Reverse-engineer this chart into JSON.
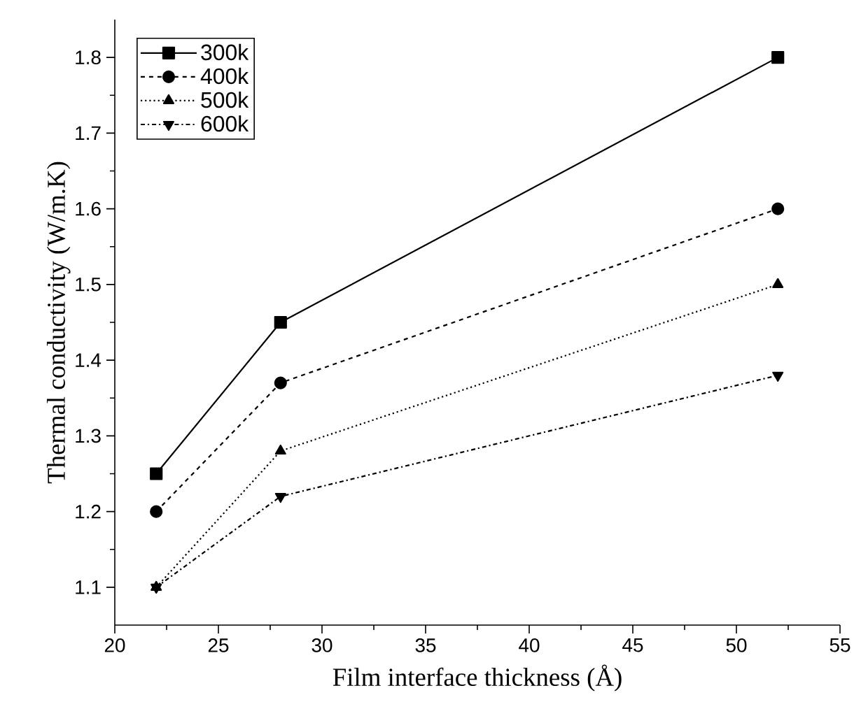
{
  "chart_data": {
    "type": "line",
    "xlabel": "Film interface thickness (Å)",
    "ylabel": "Thermal conductivity (W/m.K)",
    "x": [
      22,
      28,
      52
    ],
    "series": [
      {
        "name": "300k",
        "color": "#000000",
        "values": [
          1.25,
          1.45,
          1.8
        ],
        "marker": "square",
        "line_style": "solid"
      },
      {
        "name": "400k",
        "color": "#000000",
        "values": [
          1.2,
          1.37,
          1.6
        ],
        "marker": "circle",
        "line_style": "dashed"
      },
      {
        "name": "500k",
        "color": "#000000",
        "values": [
          1.1,
          1.28,
          1.5
        ],
        "marker": "triangle",
        "line_style": "dotted"
      },
      {
        "name": "600k",
        "color": "#000000",
        "values": [
          1.1,
          1.22,
          1.38
        ],
        "marker": "triangle-down",
        "line_style": "dashdot"
      }
    ],
    "xlim": [
      20,
      55
    ],
    "xticks": [
      20,
      25,
      30,
      35,
      40,
      45,
      50,
      55
    ],
    "ylim": [
      1.05,
      1.85
    ],
    "yticks": [
      1.1,
      1.2,
      1.3,
      1.4,
      1.5,
      1.6,
      1.7,
      1.8
    ],
    "grid": false,
    "legend": "top left"
  }
}
